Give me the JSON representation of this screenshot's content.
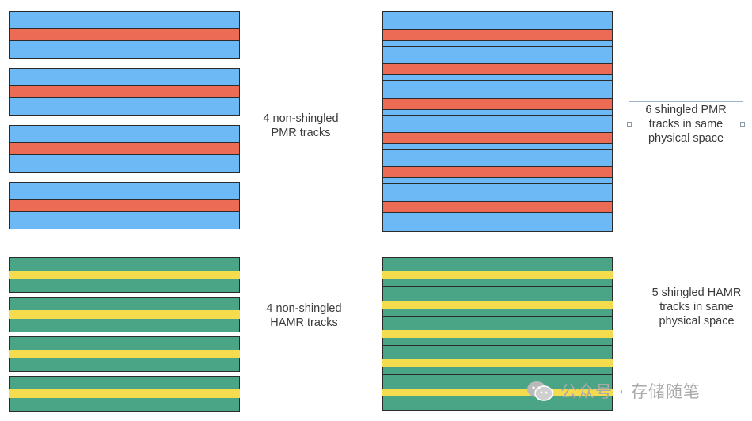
{
  "colors": {
    "pmr_track": "#6cb9f5",
    "pmr_stripe": "#ec6b55",
    "hamr_track": "#4aa586",
    "hamr_stripe": "#f5dc4e"
  },
  "labels": {
    "pmr_non_shingled": "4 non-shingled\nPMR tracks",
    "pmr_shingled": "6 shingled PMR\ntracks in same\nphysical space",
    "hamr_non_shingled": "4 non-shingled\nHAMR tracks",
    "hamr_shingled": "5 shingled HAMR\ntracks in same\nphysical space"
  },
  "watermark": {
    "icon": "wechat-icon",
    "text": "公众号 · 存储随笔"
  }
}
